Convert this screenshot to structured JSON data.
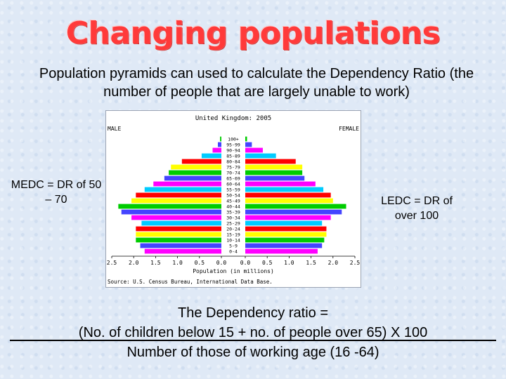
{
  "slide": {
    "title": "Changing populations",
    "intro": "Population pyramids can used to calculate the Dependency Ratio (the number of people that are largely unable to work)",
    "medc_note": "MEDC = DR of 50 – 70",
    "ledc_note": "LEDC = DR of over 100",
    "formula_line1": "The Dependency ratio =",
    "formula_numerator": "(No. of children below 15 + no. of people over 65) X 100",
    "formula_denominator": "Number of those of working age (16 -64)"
  },
  "chart_data": {
    "type": "bar",
    "title": "United Kingdom: 2005",
    "left_label": "MALE",
    "right_label": "FEMALE",
    "xlabel": "Population (in millions)",
    "source": "Source: U.S. Census Bureau, International Data Base.",
    "x_ticks": [
      "2.5",
      "2.0",
      "1.5",
      "1.0",
      "0.5",
      "0.0",
      "0.0",
      "0.5",
      "1.0",
      "1.5",
      "2.0",
      "2.5"
    ],
    "xlim": [
      0,
      2.5
    ],
    "categories": [
      "0-4",
      "5-9",
      "10-14",
      "15-19",
      "20-24",
      "25-29",
      "30-34",
      "35-39",
      "40-44",
      "45-49",
      "50-54",
      "55-59",
      "60-64",
      "65-69",
      "70-74",
      "75-79",
      "80-84",
      "85-89",
      "90-94",
      "95-99",
      "100+"
    ],
    "colors": [
      "#ff00ff",
      "#4444ff",
      "#00cc00",
      "#ffff00",
      "#ff0000",
      "#00ccff",
      "#ff00ff",
      "#4444ff",
      "#00cc00",
      "#ffff00",
      "#ff0000",
      "#00ccff",
      "#ff00ff",
      "#4444ff",
      "#00cc00",
      "#ffff00",
      "#ff0000",
      "#00ccff",
      "#ff00ff",
      "#4444ff",
      "#00cc00"
    ],
    "series": [
      {
        "name": "MALE",
        "values": [
          1.75,
          1.85,
          1.95,
          1.95,
          1.95,
          1.82,
          2.05,
          2.28,
          2.35,
          2.05,
          1.95,
          1.75,
          1.55,
          1.3,
          1.2,
          1.15,
          0.9,
          0.45,
          0.2,
          0.08,
          0.03
        ]
      },
      {
        "name": "FEMALE",
        "values": [
          1.65,
          1.75,
          1.8,
          1.85,
          1.85,
          1.75,
          1.95,
          2.2,
          2.3,
          2.0,
          1.95,
          1.78,
          1.6,
          1.35,
          1.3,
          1.3,
          1.15,
          0.7,
          0.4,
          0.15,
          0.04
        ]
      }
    ]
  }
}
